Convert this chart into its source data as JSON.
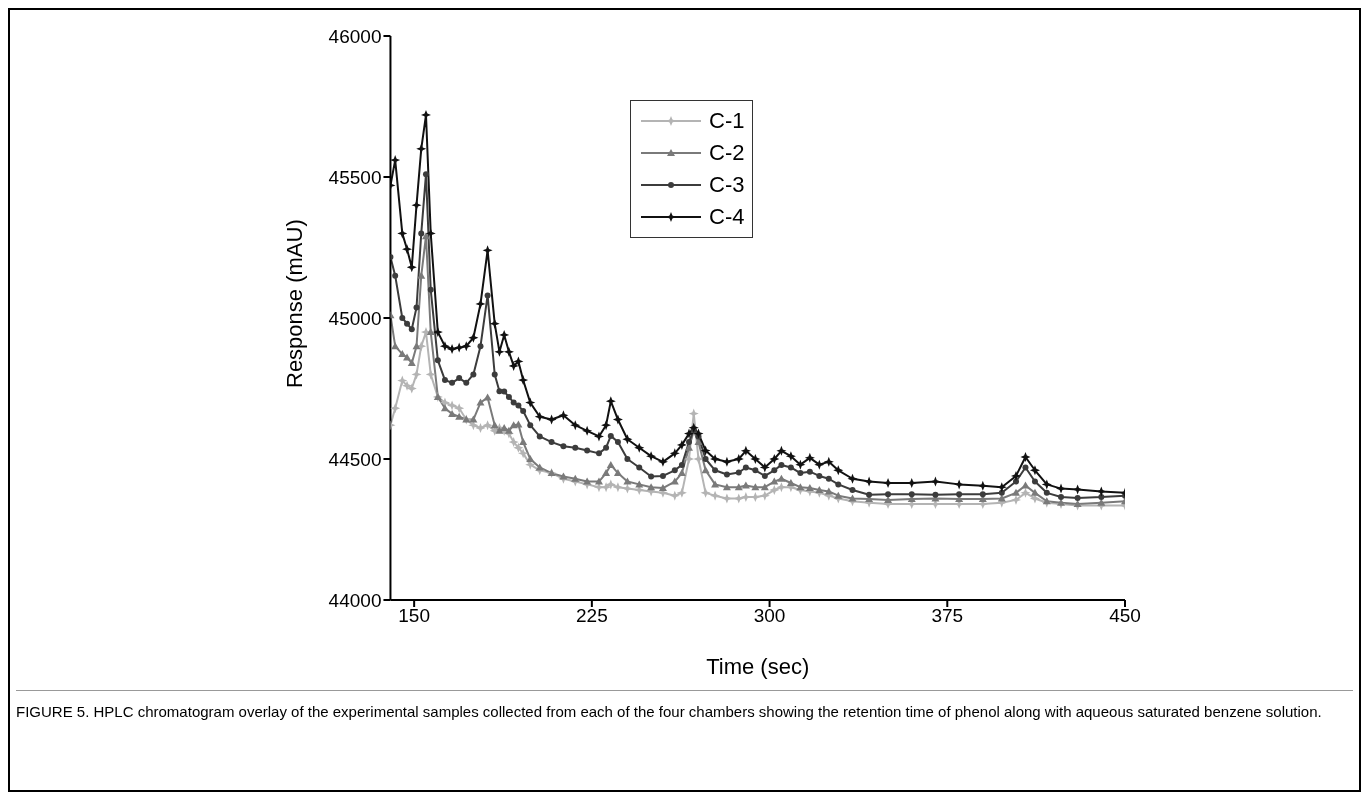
{
  "chart_data": {
    "type": "line",
    "xlabel": "Time (sec)",
    "ylabel": "Response (mAU)",
    "x": [
      140,
      142,
      145,
      147,
      149,
      151,
      153,
      155,
      157,
      160,
      163,
      166,
      169,
      172,
      175,
      178,
      181,
      184,
      186,
      188,
      190,
      192,
      194,
      196,
      199,
      203,
      208,
      213,
      218,
      223,
      228,
      231,
      233,
      236,
      240,
      245,
      250,
      255,
      260,
      263,
      266,
      268,
      270,
      273,
      277,
      282,
      287,
      290,
      294,
      298,
      302,
      305,
      309,
      313,
      317,
      321,
      325,
      329,
      335,
      342,
      350,
      360,
      370,
      380,
      390,
      398,
      404,
      408,
      412,
      417,
      423,
      430,
      440,
      450
    ],
    "series": [
      {
        "name": "C-1",
        "color": "#b4b4b4",
        "marker": "star",
        "values": [
          44620,
          44680,
          44778,
          44760,
          44750,
          44800,
          44900,
          44950,
          44800,
          44720,
          44700,
          44690,
          44680,
          44640,
          44620,
          44610,
          44620,
          44600,
          44610,
          44600,
          44590,
          44560,
          44540,
          44520,
          44480,
          44460,
          44450,
          44430,
          44420,
          44410,
          44400,
          44400,
          44410,
          44400,
          44395,
          44390,
          44385,
          44380,
          44370,
          44380,
          44500,
          44661,
          44500,
          44380,
          44370,
          44360,
          44360,
          44365,
          44365,
          44370,
          44390,
          44400,
          44400,
          44390,
          44385,
          44380,
          44370,
          44360,
          44350,
          44345,
          44340,
          44340,
          44340,
          44340,
          44340,
          44345,
          44355,
          44380,
          44360,
          44345,
          44340,
          44335,
          44335,
          44335
        ]
      },
      {
        "name": "C-2",
        "color": "#7a7a7a",
        "marker": "triangle",
        "values": [
          45010,
          44900,
          44872,
          44860,
          44840,
          44900,
          45150,
          45290,
          44950,
          44720,
          44680,
          44660,
          44650,
          44640,
          44640,
          44700,
          44718,
          44620,
          44600,
          44610,
          44600,
          44620,
          44622,
          44560,
          44500,
          44470,
          44450,
          44438,
          44430,
          44420,
          44420,
          44450,
          44479,
          44450,
          44420,
          44410,
          44400,
          44397,
          44420,
          44450,
          44540,
          44600,
          44560,
          44460,
          44410,
          44400,
          44400,
          44406,
          44400,
          44400,
          44420,
          44430,
          44415,
          44400,
          44397,
          44390,
          44385,
          44370,
          44360,
          44358,
          44355,
          44358,
          44360,
          44358,
          44358,
          44360,
          44380,
          44406,
          44380,
          44350,
          44345,
          44340,
          44345,
          44350
        ]
      },
      {
        "name": "C-3",
        "color": "#3c3c3c",
        "marker": "circle",
        "values": [
          45216,
          45150,
          45000,
          44980,
          44960,
          45037,
          45300,
          45510,
          45100,
          44850,
          44780,
          44770,
          44787,
          44770,
          44800,
          44900,
          45080,
          44800,
          44740,
          44739,
          44720,
          44700,
          44690,
          44670,
          44620,
          44580,
          44560,
          44545,
          44540,
          44530,
          44520,
          44540,
          44582,
          44560,
          44500,
          44470,
          44438,
          44440,
          44460,
          44479,
          44560,
          44603,
          44580,
          44500,
          44460,
          44445,
          44452,
          44470,
          44460,
          44440,
          44460,
          44479,
          44470,
          44450,
          44455,
          44440,
          44430,
          44410,
          44390,
          44373,
          44375,
          44375,
          44373,
          44375,
          44375,
          44380,
          44420,
          44470,
          44420,
          44380,
          44365,
          44362,
          44365,
          44370
        ]
      },
      {
        "name": "C-4",
        "color": "#111111",
        "marker": "star",
        "values": [
          45470,
          45560,
          45300,
          45244,
          45180,
          45400,
          45600,
          45720,
          45300,
          44950,
          44900,
          44890,
          44895,
          44900,
          44930,
          45050,
          45240,
          44980,
          44880,
          44940,
          44880,
          44830,
          44846,
          44780,
          44700,
          44650,
          44640,
          44655,
          44620,
          44600,
          44580,
          44620,
          44705,
          44640,
          44570,
          44540,
          44510,
          44490,
          44520,
          44550,
          44590,
          44611,
          44590,
          44530,
          44500,
          44490,
          44500,
          44529,
          44500,
          44470,
          44500,
          44529,
          44510,
          44480,
          44504,
          44480,
          44490,
          44460,
          44430,
          44420,
          44415,
          44415,
          44420,
          44410,
          44405,
          44400,
          44440,
          44507,
          44460,
          44410,
          44395,
          44392,
          44385,
          44380
        ]
      }
    ],
    "xlim": [
      140,
      450
    ],
    "xticks": [
      150,
      225,
      300,
      375,
      450
    ],
    "ylim": [
      44000,
      46000
    ],
    "yticks": [
      44000,
      44500,
      45000,
      45500,
      46000
    ],
    "grid": false,
    "legend": "top",
    "line_style": "solid",
    "annotations": [
      "FIGURE 5.    HPLC chromatogram overlay of the experimental samples collected from each of the four chambers showing the retention time of phenol along with aqueous saturated benzene solution."
    ]
  }
}
